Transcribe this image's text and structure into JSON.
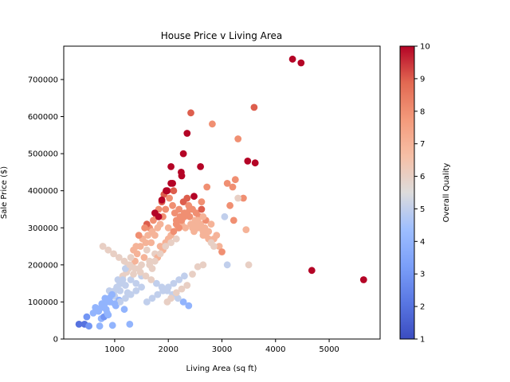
{
  "chart_data": {
    "type": "scatter",
    "title": "House Price v Living Area",
    "xlabel": "Living Area (sq ft)",
    "ylabel": "Sale Price ($)",
    "xlim": [
      50,
      5950
    ],
    "ylim": [
      0,
      790000
    ],
    "xticks": [
      1000,
      2000,
      3000,
      4000,
      5000
    ],
    "yticks": [
      0,
      100000,
      200000,
      300000,
      400000,
      500000,
      600000,
      700000
    ],
    "grid": false,
    "colorbar": {
      "label": "Overall Quality",
      "range": [
        1,
        10
      ],
      "ticks": [
        1,
        2,
        3,
        4,
        5,
        6,
        7,
        8,
        9,
        10
      ],
      "colormap": "coolwarm"
    },
    "series": [
      {
        "x": [
          334,
          438,
          480,
          520,
          600,
          640,
          700,
          720,
          750,
          760,
          800,
          820,
          840,
          860,
          880,
          900,
          912,
          940,
          960,
          1000,
          1020,
          1040,
          1060,
          1080,
          1100,
          1120,
          1150,
          1180,
          1200,
          1220,
          1240,
          1260,
          1280,
          1300,
          1320,
          1350,
          1380,
          1400,
          1420,
          1450,
          1480,
          1500,
          1520,
          1550,
          1580,
          1600,
          1620,
          1650,
          1680,
          1700,
          1720,
          1750,
          1780,
          1800,
          1820,
          1850,
          1880,
          1900,
          1920,
          1950,
          1980,
          2000,
          2020,
          2050,
          2080,
          2100,
          2120,
          2150,
          2180,
          2200,
          2220,
          2250,
          2280,
          2300,
          2320,
          2350,
          2380,
          2400,
          2420,
          2450,
          2480,
          2500,
          2520,
          2550,
          2580,
          2600,
          2620,
          2650,
          2680,
          2700,
          2750,
          2800,
          2850,
          2900,
          2950,
          3000,
          3100,
          3150,
          3200,
          3250,
          3300,
          3400,
          3450,
          3500,
          3600,
          4316,
          4476,
          4676,
          5642,
          1500,
          1650,
          1700,
          1750,
          1800,
          1850,
          1900,
          1950,
          2000,
          2050,
          2100,
          2150,
          2200,
          2250,
          2300,
          2350,
          2400,
          2450,
          2500,
          2550,
          2600,
          2650,
          2700,
          2750,
          2800,
          2850,
          2280,
          2240,
          2350,
          2420,
          2050,
          1960,
          2080,
          2250,
          2600,
          2480,
          1880,
          1750,
          1820,
          1600,
          1560,
          1450,
          1400,
          1350,
          1300,
          1250,
          1200,
          1150,
          1100,
          1050,
          1000,
          950,
          900,
          850,
          800,
          750,
          700,
          1600,
          1700,
          1800,
          1900,
          2000,
          2100,
          2200,
          2300,
          1500,
          1400,
          1300,
          1200,
          1100,
          1000,
          1650,
          1750,
          1850,
          1950,
          2050,
          2150,
          2450,
          2550,
          2650,
          3050,
          3100,
          3300,
          3220,
          3620,
          3480,
          2380,
          2280,
          2180,
          2080,
          1980,
          1880,
          1780,
          1680,
          1580,
          1480,
          1380,
          1280,
          1180,
          1080,
          980,
          880,
          780,
          2620,
          2720,
          2820,
          1980,
          2050,
          2150,
          2250,
          2350,
          2450,
          2550,
          2650
        ],
        "y": [
          40000,
          40000,
          60000,
          35000,
          70000,
          85000,
          75000,
          35000,
          55000,
          95000,
          60000,
          110000,
          80000,
          70000,
          65000,
          130000,
          100000,
          120000,
          37000,
          115000,
          90000,
          140000,
          160000,
          105000,
          130000,
          150000,
          170000,
          80000,
          145000,
          180000,
          125000,
          190000,
          40000,
          160000,
          200000,
          175000,
          210000,
          150000,
          230000,
          190000,
          250000,
          170000,
          270000,
          220000,
          260000,
          240000,
          280000,
          300000,
          260000,
          290000,
          320000,
          280000,
          330000,
          300000,
          350000,
          310000,
          370000,
          330000,
          390000,
          350000,
          400000,
          300000,
          380000,
          420000,
          360000,
          400000,
          340000,
          320000,
          300000,
          350000,
          330000,
          310000,
          370000,
          340000,
          300000,
          380000,
          360000,
          330000,
          310000,
          350000,
          290000,
          320000,
          340000,
          300000,
          330000,
          310000,
          350000,
          280000,
          300000,
          320000,
          290000,
          310000,
          270000,
          280000,
          250000,
          235000,
          200000,
          360000,
          410000,
          430000,
          540000,
          380000,
          295000,
          200000,
          625000,
          755000,
          745000,
          185000,
          160000,
          200000,
          210000,
          190000,
          230000,
          220000,
          250000,
          240000,
          260000,
          270000,
          280000,
          290000,
          310000,
          300000,
          320000,
          330000,
          340000,
          350000,
          300000,
          310000,
          320000,
          300000,
          290000,
          280000,
          270000,
          260000,
          250000,
          500000,
          450000,
          555000,
          610000,
          465000,
          400000,
          420000,
          440000,
          465000,
          385000,
          375000,
          340000,
          330000,
          310000,
          300000,
          280000,
          250000,
          240000,
          220000,
          200000,
          190000,
          160000,
          150000,
          140000,
          130000,
          120000,
          110000,
          100000,
          90000,
          85000,
          80000,
          100000,
          110000,
          120000,
          130000,
          140000,
          150000,
          160000,
          170000,
          140000,
          130000,
          120000,
          110000,
          100000,
          95000,
          200000,
          210000,
          230000,
          250000,
          260000,
          270000,
          310000,
          320000,
          330000,
          330000,
          420000,
          380000,
          320000,
          475000,
          480000,
          90000,
          100000,
          110000,
          120000,
          130000,
          140000,
          150000,
          160000,
          170000,
          180000,
          190000,
          200000,
          210000,
          220000,
          230000,
          240000,
          250000,
          370000,
          410000,
          580000,
          100000,
          110000,
          125000,
          135000,
          145000,
          175000,
          195000,
          200000
        ],
        "quality": [
          2,
          2,
          3,
          3,
          4,
          4,
          4,
          4,
          4,
          4,
          3,
          4,
          4,
          4,
          4,
          5,
          4,
          5,
          4,
          5,
          4,
          5,
          5,
          4,
          5,
          5,
          6,
          4,
          5,
          6,
          5,
          6,
          4,
          5,
          6,
          6,
          7,
          5,
          7,
          6,
          7,
          5,
          7,
          7,
          7,
          6,
          7,
          8,
          7,
          7,
          8,
          7,
          8,
          7,
          8,
          7,
          9,
          8,
          9,
          8,
          10,
          7,
          8,
          10,
          8,
          9,
          8,
          8,
          7,
          8,
          8,
          7,
          9,
          8,
          7,
          9,
          8,
          8,
          7,
          8,
          7,
          7,
          8,
          7,
          8,
          7,
          9,
          7,
          7,
          8,
          7,
          7,
          7,
          7,
          7,
          8,
          5,
          8,
          8,
          8,
          8,
          8,
          7,
          6,
          9,
          10,
          10,
          10,
          10,
          6,
          6,
          6,
          6,
          7,
          7,
          7,
          7,
          7,
          7,
          8,
          8,
          8,
          8,
          8,
          8,
          8,
          7,
          7,
          7,
          7,
          7,
          7,
          7,
          6,
          6,
          10,
          10,
          10,
          9,
          10,
          10,
          10,
          10,
          10,
          10,
          10,
          10,
          10,
          9,
          8,
          8,
          7,
          7,
          6,
          6,
          5,
          5,
          5,
          5,
          5,
          4,
          4,
          4,
          4,
          4,
          4,
          5,
          5,
          5,
          5,
          5,
          5,
          5,
          5,
          5,
          5,
          5,
          5,
          5,
          4,
          6,
          6,
          6,
          6,
          6,
          6,
          7,
          7,
          7,
          5,
          8,
          6,
          8,
          10,
          10,
          4,
          4,
          5,
          5,
          5,
          5,
          5,
          6,
          6,
          6,
          6,
          6,
          6,
          6,
          6,
          6,
          6,
          8,
          8,
          8,
          6,
          6,
          6,
          6,
          6,
          6,
          6,
          6
        ]
      }
    ]
  }
}
